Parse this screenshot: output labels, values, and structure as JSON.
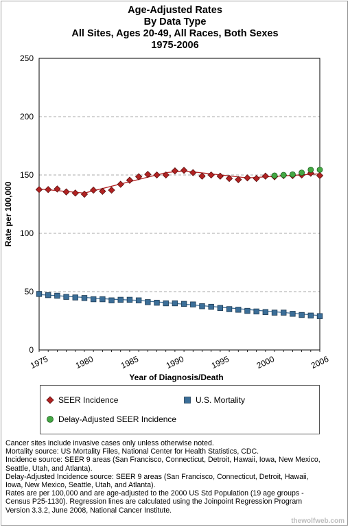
{
  "title_lines": [
    "Age-Adjusted  Rates",
    "By Data Type",
    "All Sites, Ages 20-49, All Races, Both Sexes",
    "1975-2006"
  ],
  "chart_data": {
    "type": "scatter",
    "title": "Age-Adjusted Rates By Data Type, All Sites, Ages 20-49, All Races, Both Sexes, 1975-2006",
    "xlabel": "Year of Diagnosis/Death",
    "ylabel": "Rate per 100,000",
    "xlim": [
      1975,
      2006
    ],
    "ylim": [
      0,
      250
    ],
    "xticks": [
      "1975",
      "1980",
      "1985",
      "1990",
      "1995",
      "2000",
      "2006"
    ],
    "yticks": [
      "0",
      "50",
      "100",
      "150",
      "200",
      "250"
    ],
    "grid": "horizontal dashed",
    "legend_position": "bottom",
    "x": [
      1975,
      1976,
      1977,
      1978,
      1979,
      1980,
      1981,
      1982,
      1983,
      1984,
      1985,
      1986,
      1987,
      1988,
      1989,
      1990,
      1991,
      1992,
      1993,
      1994,
      1995,
      1996,
      1997,
      1998,
      1999,
      2000,
      2001,
      2002,
      2003,
      2004,
      2005,
      2006
    ],
    "series": [
      {
        "name": "SEER Incidence",
        "color": "#b22222",
        "marker": "diamond",
        "values": [
          137.5,
          137.5,
          138.0,
          135.5,
          134.5,
          133.5,
          137.0,
          136.0,
          137.0,
          142.0,
          145.5,
          148.5,
          150.5,
          150.0,
          150.0,
          153.5,
          154.0,
          152.0,
          149.0,
          150.0,
          149.0,
          147.0,
          146.0,
          147.5,
          147.0,
          149.0,
          148.5,
          149.5,
          149.5,
          150.0,
          151.5,
          149.5
        ]
      },
      {
        "name": "U.S. Mortality",
        "color": "#3b6e98",
        "marker": "square",
        "values": [
          48.0,
          47.0,
          46.5,
          45.5,
          45.0,
          44.5,
          43.5,
          43.5,
          42.5,
          43.0,
          43.0,
          42.5,
          41.0,
          40.5,
          40.0,
          40.0,
          39.5,
          39.0,
          37.5,
          37.0,
          36.0,
          35.0,
          34.5,
          33.5,
          33.0,
          32.5,
          32.0,
          32.0,
          31.0,
          30.0,
          29.5,
          29.0
        ]
      },
      {
        "name": "Delay-Adjusted SEER Incidence",
        "color": "#44a844",
        "marker": "circle",
        "x": [
          2001,
          2002,
          2003,
          2004,
          2005,
          2006
        ],
        "values": [
          149.5,
          150.0,
          150.5,
          152.0,
          154.5,
          154.5
        ]
      }
    ],
    "regression_lines": {
      "SEER Incidence": [
        [
          1975,
          138.0
        ],
        [
          1980,
          134.5
        ],
        [
          1989,
          152.0
        ],
        [
          1991,
          153.5
        ],
        [
          1998,
          147.5
        ],
        [
          2006,
          151.0
        ]
      ],
      "U.S. Mortality": [
        [
          1975,
          47.5
        ],
        [
          1983,
          43.5
        ],
        [
          1986,
          42.5
        ],
        [
          2006,
          29.5
        ]
      ]
    }
  },
  "legend": {
    "items": [
      {
        "label": "SEER Incidence",
        "marker": "diamond",
        "color": "#b22222"
      },
      {
        "label": "U.S. Mortality",
        "marker": "square",
        "color": "#3b6e98"
      },
      {
        "label": "Delay-Adjusted SEER Incidence",
        "marker": "circle",
        "color": "#44a844"
      }
    ]
  },
  "notes": [
    "Cancer sites include invasive cases only unless otherwise noted.",
    "Mortality source: US Mortality Files, National Center for Health Statistics, CDC.",
    "Incidence source: SEER 9 areas (San Francisco, Connecticut, Detroit, Hawaii, Iowa, New Mexico,",
    "Seattle, Utah, and Atlanta).",
    "Delay-Adjusted Incidence source: SEER 9 areas (San Francisco, Connecticut, Detroit, Hawaii,",
    "Iowa, New Mexico, Seattle, Utah, and Atlanta).",
    "Rates are per 100,000 and are age-adjusted to the 2000 US Std Population (19 age groups -",
    "Census P25-1130). Regression lines are calculated using the Joinpoint Regression Program",
    "Version 3.3.2, June 2008, National Cancer Institute."
  ],
  "watermark": "thewolfweb.com"
}
